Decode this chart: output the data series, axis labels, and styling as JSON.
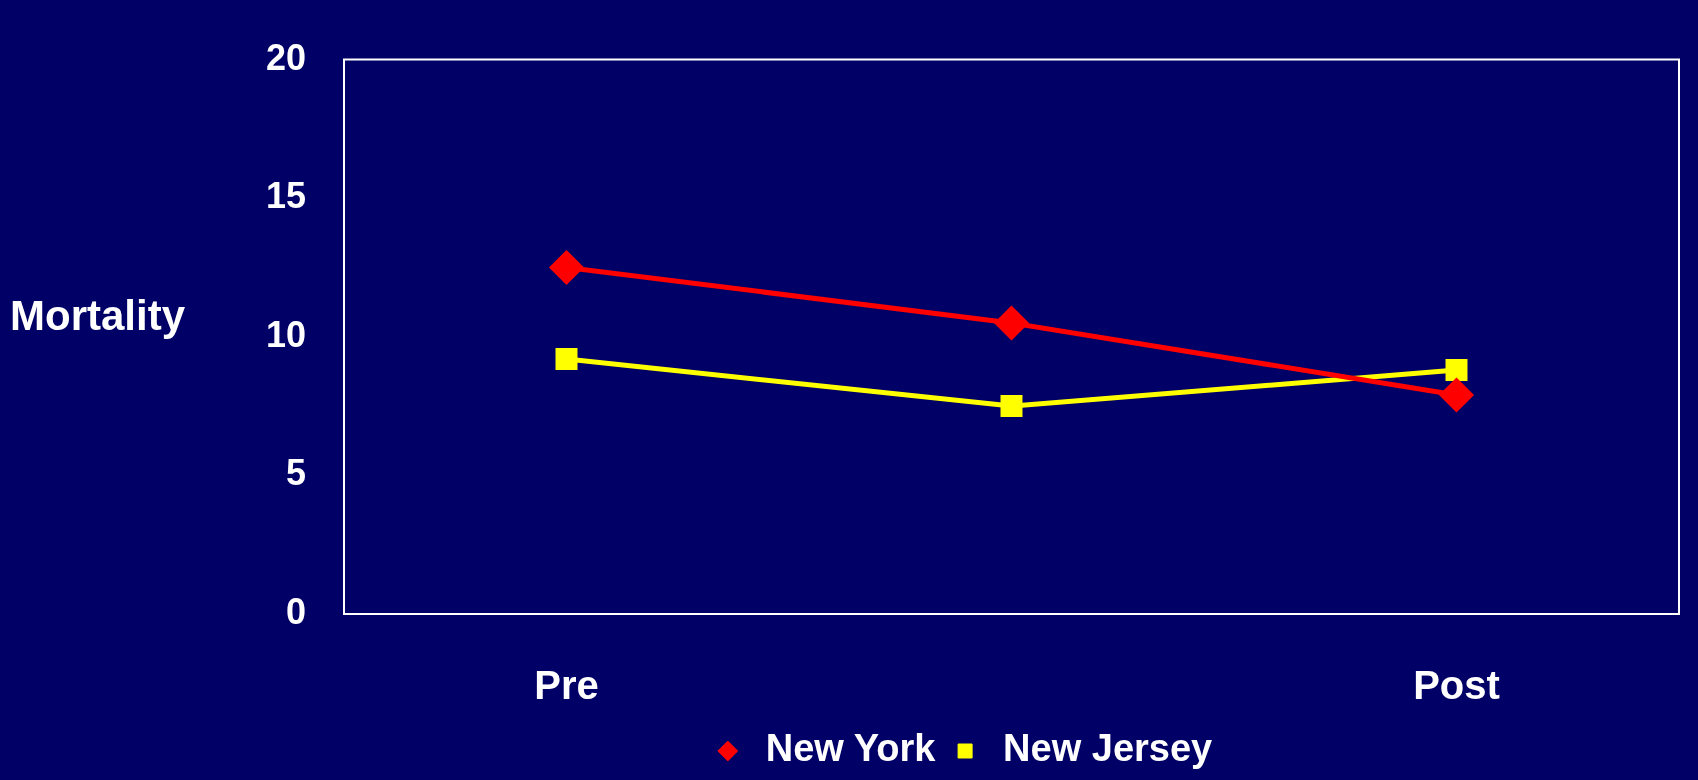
{
  "chart_data": {
    "type": "line",
    "ylabel": "Mortality",
    "categories": [
      "Pre",
      null,
      "Post"
    ],
    "series": [
      {
        "name": "New York",
        "color": "#ff0000",
        "marker": "diamond",
        "values": [
          12.5,
          10.5,
          7.9
        ]
      },
      {
        "name": "New Jersey",
        "color": "#ffff00",
        "marker": "square",
        "values": [
          9.2,
          7.5,
          8.8
        ]
      }
    ],
    "ylim": [
      0,
      20
    ],
    "yticks": [
      0,
      5,
      10,
      15,
      20
    ],
    "grid": false,
    "legend": "bottom"
  }
}
